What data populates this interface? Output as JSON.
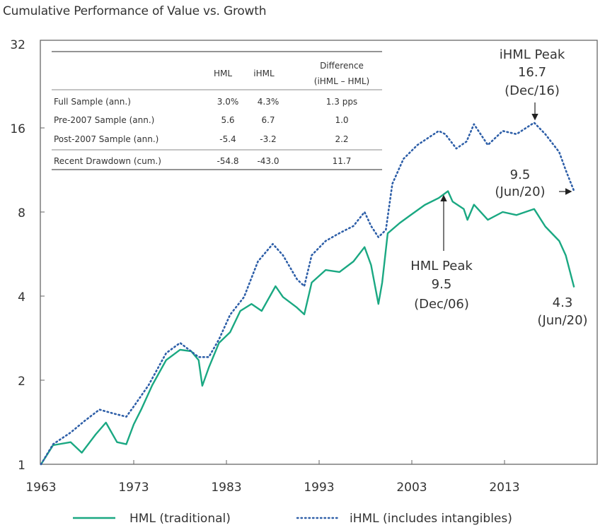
{
  "chart_data": {
    "type": "line",
    "title": "Cumulative Performance of Value vs. Growth",
    "xlabel": "",
    "ylabel": "",
    "yscale": "log2",
    "ylim": [
      1,
      32
    ],
    "xlim": [
      1963,
      2023
    ],
    "yticks": [
      "1",
      "2",
      "4",
      "8",
      "16",
      "32"
    ],
    "ytick_values": [
      1,
      2,
      4,
      8,
      16,
      32
    ],
    "xticks": [
      "1963",
      "1973",
      "1983",
      "1993",
      "2003",
      "2013"
    ],
    "xtick_values": [
      1963,
      1973,
      1983,
      1993,
      2003,
      2013
    ],
    "grid": false,
    "legend_position": "bottom",
    "series": [
      {
        "name": "HML (traditional)",
        "style": "solid",
        "color": "#1aa882",
        "x": [
          1963.0,
          1964.3,
          1966.2,
          1967.4,
          1968.9,
          1970.0,
          1971.2,
          1972.2,
          1973.0,
          1973.8,
          1975.0,
          1976.5,
          1978.0,
          1979.2,
          1980.0,
          1980.4,
          1981.1,
          1982.2,
          1983.4,
          1984.5,
          1985.7,
          1986.8,
          1988.3,
          1989.1,
          1990.6,
          1991.4,
          1992.2,
          1993.7,
          1995.2,
          1996.7,
          1997.9,
          1998.6,
          1999.4,
          1999.8,
          2000.4,
          2001.7,
          2002.8,
          2004.4,
          2005.9,
          2006.9,
          2007.4,
          2008.6,
          2009.0,
          2009.7,
          2011.2,
          2012.8,
          2014.3,
          2016.2,
          2017.4,
          2018.9,
          2019.6,
          2020.5
        ],
        "values": [
          1.0,
          1.17,
          1.2,
          1.1,
          1.28,
          1.41,
          1.2,
          1.18,
          1.39,
          1.57,
          1.92,
          2.36,
          2.57,
          2.54,
          2.36,
          1.91,
          2.22,
          2.72,
          2.97,
          3.54,
          3.75,
          3.54,
          4.34,
          3.97,
          3.64,
          3.44,
          4.47,
          4.96,
          4.88,
          5.32,
          5.99,
          5.17,
          3.75,
          4.47,
          6.71,
          7.31,
          7.77,
          8.48,
          8.98,
          9.5,
          8.72,
          8.2,
          7.5,
          8.5,
          7.5,
          8.0,
          7.8,
          8.2,
          7.1,
          6.3,
          5.6,
          4.3
        ]
      },
      {
        "name": "iHML (includes intangibles)",
        "style": "dotted",
        "color": "#2e5fa8",
        "x": [
          1963.0,
          1964.3,
          1966.2,
          1967.7,
          1969.3,
          1970.8,
          1972.2,
          1973.0,
          1974.6,
          1976.5,
          1978.0,
          1980.0,
          1981.1,
          1982.2,
          1983.4,
          1984.9,
          1986.4,
          1988.0,
          1989.1,
          1990.6,
          1991.4,
          1992.2,
          1993.7,
          1995.2,
          1996.7,
          1997.9,
          1998.6,
          1999.4,
          2000.2,
          2000.9,
          2002.1,
          2003.6,
          2005.9,
          2006.6,
          2007.8,
          2008.9,
          2009.7,
          2011.2,
          2012.8,
          2014.3,
          2016.2,
          2017.4,
          2018.9,
          2019.6,
          2020.5
        ],
        "values": [
          1.0,
          1.18,
          1.3,
          1.43,
          1.57,
          1.52,
          1.48,
          1.61,
          1.92,
          2.5,
          2.72,
          2.42,
          2.42,
          2.8,
          3.43,
          3.97,
          5.32,
          6.15,
          5.6,
          4.6,
          4.34,
          5.6,
          6.3,
          6.72,
          7.13,
          8.0,
          7.13,
          6.5,
          6.9,
          10.1,
          12.4,
          13.9,
          15.6,
          15.2,
          13.5,
          14.3,
          16.5,
          13.9,
          15.6,
          15.2,
          16.7,
          15.2,
          13.1,
          11.3,
          9.5
        ]
      }
    ],
    "annotations": [
      {
        "lines": [
          "iHML Peak",
          "16.7",
          "(Dec/16)"
        ],
        "target": {
          "x": 2016.9,
          "y": 16.7
        },
        "arrow": "down"
      },
      {
        "lines": [
          "9.5",
          "(Jun/20)"
        ],
        "target": {
          "x": 2020.5,
          "y": 9.5
        },
        "arrow": "right"
      },
      {
        "lines": [
          "HML Peak",
          "9.5",
          "(Dec/06)"
        ],
        "target": {
          "x": 2006.9,
          "y": 9.5
        },
        "arrow": "up"
      },
      {
        "lines": [
          "4.3",
          "(Jun/20)"
        ],
        "target": {
          "x": 2020.5,
          "y": 4.3
        },
        "arrow": "none"
      }
    ],
    "inset_table": {
      "headers": [
        "",
        "HML",
        "iHML",
        "Difference",
        "(iHML – HML)"
      ],
      "rows": [
        [
          "Full Sample (ann.)",
          "3.0%",
          "4.3%",
          "1.3 pps"
        ],
        [
          "Pre-2007 Sample (ann.)",
          "5.6",
          "6.7",
          "1.0"
        ],
        [
          "Post-2007 Sample (ann.)",
          "-5.4",
          "-3.2",
          "2.2"
        ],
        [
          "Recent Drawdown (cum.)",
          "-54.8",
          "-43.0",
          "11.7"
        ]
      ]
    }
  }
}
